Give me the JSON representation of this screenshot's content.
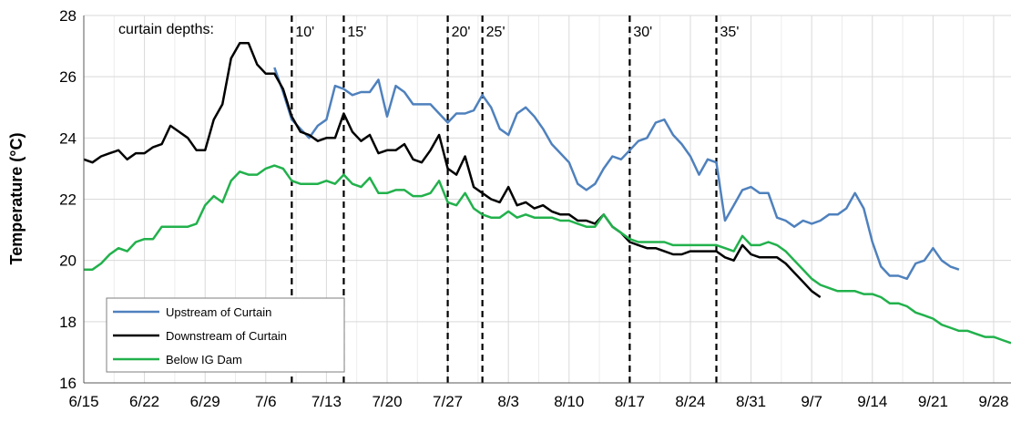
{
  "chart_data": {
    "type": "line",
    "title": "",
    "xlabel": "",
    "ylabel": "Temperature (°C)",
    "ylim": [
      16,
      28
    ],
    "yticks": [
      16,
      18,
      20,
      22,
      24,
      26,
      28
    ],
    "xlim": [
      "6/15",
      "9/30"
    ],
    "xticks": [
      "6/15",
      "6/22",
      "6/29",
      "7/6",
      "7/13",
      "7/20",
      "7/27",
      "8/3",
      "8/10",
      "8/17",
      "8/24",
      "8/31",
      "9/7",
      "9/14",
      "9/21",
      "9/28"
    ],
    "grid": true,
    "legend_position": "bottom-left",
    "annotation_label": "curtain depths:",
    "curtain_lines": [
      {
        "date": "7/9",
        "label": "10'"
      },
      {
        "date": "7/15",
        "label": "15'"
      },
      {
        "date": "7/27",
        "label": "20'"
      },
      {
        "date": "7/31",
        "label": "25'"
      },
      {
        "date": "8/17",
        "label": "30'"
      },
      {
        "date": "8/27",
        "label": "35'"
      }
    ],
    "series": [
      {
        "name": "Upstream of Curtain",
        "color": "#4f81bd",
        "points": [
          [
            "7/7",
            26.3
          ],
          [
            "7/8",
            25.5
          ],
          [
            "7/9",
            24.6
          ],
          [
            "7/10",
            24.3
          ],
          [
            "7/11",
            24.0
          ],
          [
            "7/12",
            24.4
          ],
          [
            "7/13",
            24.6
          ],
          [
            "7/14",
            25.7
          ],
          [
            "7/15",
            25.6
          ],
          [
            "7/16",
            25.4
          ],
          [
            "7/17",
            25.5
          ],
          [
            "7/18",
            25.5
          ],
          [
            "7/19",
            25.9
          ],
          [
            "7/20",
            24.7
          ],
          [
            "7/21",
            25.7
          ],
          [
            "7/22",
            25.5
          ],
          [
            "7/23",
            25.1
          ],
          [
            "7/24",
            25.1
          ],
          [
            "7/25",
            25.1
          ],
          [
            "7/26",
            24.8
          ],
          [
            "7/27",
            24.5
          ],
          [
            "7/28",
            24.8
          ],
          [
            "7/29",
            24.8
          ],
          [
            "7/30",
            24.9
          ],
          [
            "7/31",
            25.4
          ],
          [
            "8/1",
            25.0
          ],
          [
            "8/2",
            24.3
          ],
          [
            "8/3",
            24.1
          ],
          [
            "8/4",
            24.8
          ],
          [
            "8/5",
            25.0
          ],
          [
            "8/6",
            24.7
          ],
          [
            "8/7",
            24.3
          ],
          [
            "8/8",
            23.8
          ],
          [
            "8/9",
            23.5
          ],
          [
            "8/10",
            23.2
          ],
          [
            "8/11",
            22.5
          ],
          [
            "8/12",
            22.3
          ],
          [
            "8/13",
            22.5
          ],
          [
            "8/14",
            23.0
          ],
          [
            "8/15",
            23.4
          ],
          [
            "8/16",
            23.3
          ],
          [
            "8/17",
            23.6
          ],
          [
            "8/18",
            23.9
          ],
          [
            "8/19",
            24.0
          ],
          [
            "8/20",
            24.5
          ],
          [
            "8/21",
            24.6
          ],
          [
            "8/22",
            24.1
          ],
          [
            "8/23",
            23.8
          ],
          [
            "8/24",
            23.4
          ],
          [
            "8/25",
            22.8
          ],
          [
            "8/26",
            23.3
          ],
          [
            "8/27",
            23.2
          ],
          [
            "8/28",
            21.3
          ],
          [
            "8/29",
            21.8
          ],
          [
            "8/30",
            22.3
          ],
          [
            "8/31",
            22.4
          ],
          [
            "9/1",
            22.2
          ],
          [
            "9/2",
            22.2
          ],
          [
            "9/3",
            21.4
          ],
          [
            "9/4",
            21.3
          ],
          [
            "9/5",
            21.1
          ],
          [
            "9/6",
            21.3
          ],
          [
            "9/7",
            21.2
          ],
          [
            "9/8",
            21.3
          ],
          [
            "9/9",
            21.5
          ],
          [
            "9/10",
            21.5
          ],
          [
            "9/11",
            21.7
          ],
          [
            "9/12",
            22.2
          ],
          [
            "9/13",
            21.7
          ],
          [
            "9/14",
            20.6
          ],
          [
            "9/15",
            19.8
          ],
          [
            "9/16",
            19.5
          ],
          [
            "9/17",
            19.5
          ],
          [
            "9/18",
            19.4
          ],
          [
            "9/19",
            19.9
          ],
          [
            "9/20",
            20.0
          ],
          [
            "9/21",
            20.4
          ],
          [
            "9/22",
            20.0
          ],
          [
            "9/23",
            19.8
          ],
          [
            "9/24",
            19.7
          ]
        ]
      },
      {
        "name": "Downstream of Curtain",
        "color": "#000000",
        "points": [
          [
            "6/15",
            23.3
          ],
          [
            "6/16",
            23.2
          ],
          [
            "6/17",
            23.4
          ],
          [
            "6/18",
            23.5
          ],
          [
            "6/19",
            23.6
          ],
          [
            "6/20",
            23.3
          ],
          [
            "6/21",
            23.5
          ],
          [
            "6/22",
            23.5
          ],
          [
            "6/23",
            23.7
          ],
          [
            "6/24",
            23.8
          ],
          [
            "6/25",
            24.4
          ],
          [
            "6/26",
            24.2
          ],
          [
            "6/27",
            24.0
          ],
          [
            "6/28",
            23.6
          ],
          [
            "6/29",
            23.6
          ],
          [
            "6/30",
            24.6
          ],
          [
            "7/1",
            25.1
          ],
          [
            "7/2",
            26.6
          ],
          [
            "7/3",
            27.1
          ],
          [
            "7/4",
            27.1
          ],
          [
            "7/5",
            26.4
          ],
          [
            "7/6",
            26.1
          ],
          [
            "7/7",
            26.1
          ],
          [
            "7/8",
            25.6
          ],
          [
            "7/9",
            24.7
          ],
          [
            "7/10",
            24.2
          ],
          [
            "7/11",
            24.1
          ],
          [
            "7/12",
            23.9
          ],
          [
            "7/13",
            24.0
          ],
          [
            "7/14",
            24.0
          ],
          [
            "7/15",
            24.8
          ],
          [
            "7/16",
            24.2
          ],
          [
            "7/17",
            23.9
          ],
          [
            "7/18",
            24.1
          ],
          [
            "7/19",
            23.5
          ],
          [
            "7/20",
            23.6
          ],
          [
            "7/21",
            23.6
          ],
          [
            "7/22",
            23.8
          ],
          [
            "7/23",
            23.3
          ],
          [
            "7/24",
            23.2
          ],
          [
            "7/25",
            23.6
          ],
          [
            "7/26",
            24.1
          ],
          [
            "7/27",
            23.0
          ],
          [
            "7/28",
            22.8
          ],
          [
            "7/29",
            23.4
          ],
          [
            "7/30",
            22.4
          ],
          [
            "7/31",
            22.2
          ],
          [
            "8/1",
            22.0
          ],
          [
            "8/2",
            21.9
          ],
          [
            "8/3",
            22.4
          ],
          [
            "8/4",
            21.8
          ],
          [
            "8/5",
            21.9
          ],
          [
            "8/6",
            21.7
          ],
          [
            "8/7",
            21.8
          ],
          [
            "8/8",
            21.6
          ],
          [
            "8/9",
            21.5
          ],
          [
            "8/10",
            21.5
          ],
          [
            "8/11",
            21.3
          ],
          [
            "8/12",
            21.3
          ],
          [
            "8/13",
            21.2
          ],
          [
            "8/14",
            21.5
          ],
          [
            "8/15",
            21.1
          ],
          [
            "8/16",
            20.9
          ],
          [
            "8/17",
            20.6
          ],
          [
            "8/18",
            20.5
          ],
          [
            "8/19",
            20.4
          ],
          [
            "8/20",
            20.4
          ],
          [
            "8/21",
            20.3
          ],
          [
            "8/22",
            20.2
          ],
          [
            "8/23",
            20.2
          ],
          [
            "8/24",
            20.3
          ],
          [
            "8/25",
            20.3
          ],
          [
            "8/26",
            20.3
          ],
          [
            "8/27",
            20.3
          ],
          [
            "8/28",
            20.1
          ],
          [
            "8/29",
            20.0
          ],
          [
            "8/30",
            20.5
          ],
          [
            "8/31",
            20.2
          ],
          [
            "9/1",
            20.1
          ],
          [
            "9/2",
            20.1
          ],
          [
            "9/3",
            20.1
          ],
          [
            "9/4",
            19.9
          ],
          [
            "9/5",
            19.6
          ],
          [
            "9/6",
            19.3
          ],
          [
            "9/7",
            19.0
          ],
          [
            "9/8",
            18.8
          ]
        ]
      },
      {
        "name": "Below IG Dam",
        "color": "#22b14c",
        "points": [
          [
            "6/15",
            19.7
          ],
          [
            "6/16",
            19.7
          ],
          [
            "6/17",
            19.9
          ],
          [
            "6/18",
            20.2
          ],
          [
            "6/19",
            20.4
          ],
          [
            "6/20",
            20.3
          ],
          [
            "6/21",
            20.6
          ],
          [
            "6/22",
            20.7
          ],
          [
            "6/23",
            20.7
          ],
          [
            "6/24",
            21.1
          ],
          [
            "6/25",
            21.1
          ],
          [
            "6/26",
            21.1
          ],
          [
            "6/27",
            21.1
          ],
          [
            "6/28",
            21.2
          ],
          [
            "6/29",
            21.8
          ],
          [
            "6/30",
            22.1
          ],
          [
            "7/1",
            21.9
          ],
          [
            "7/2",
            22.6
          ],
          [
            "7/3",
            22.9
          ],
          [
            "7/4",
            22.8
          ],
          [
            "7/5",
            22.8
          ],
          [
            "7/6",
            23.0
          ],
          [
            "7/7",
            23.1
          ],
          [
            "7/8",
            23.0
          ],
          [
            "7/9",
            22.6
          ],
          [
            "7/10",
            22.5
          ],
          [
            "7/11",
            22.5
          ],
          [
            "7/12",
            22.5
          ],
          [
            "7/13",
            22.6
          ],
          [
            "7/14",
            22.5
          ],
          [
            "7/15",
            22.8
          ],
          [
            "7/16",
            22.5
          ],
          [
            "7/17",
            22.4
          ],
          [
            "7/18",
            22.7
          ],
          [
            "7/19",
            22.2
          ],
          [
            "7/20",
            22.2
          ],
          [
            "7/21",
            22.3
          ],
          [
            "7/22",
            22.3
          ],
          [
            "7/23",
            22.1
          ],
          [
            "7/24",
            22.1
          ],
          [
            "7/25",
            22.2
          ],
          [
            "7/26",
            22.6
          ],
          [
            "7/27",
            21.9
          ],
          [
            "7/28",
            21.8
          ],
          [
            "7/29",
            22.2
          ],
          [
            "7/30",
            21.7
          ],
          [
            "7/31",
            21.5
          ],
          [
            "8/1",
            21.4
          ],
          [
            "8/2",
            21.4
          ],
          [
            "8/3",
            21.6
          ],
          [
            "8/4",
            21.4
          ],
          [
            "8/5",
            21.5
          ],
          [
            "8/6",
            21.4
          ],
          [
            "8/7",
            21.4
          ],
          [
            "8/8",
            21.4
          ],
          [
            "8/9",
            21.3
          ],
          [
            "8/10",
            21.3
          ],
          [
            "8/11",
            21.2
          ],
          [
            "8/12",
            21.1
          ],
          [
            "8/13",
            21.1
          ],
          [
            "8/14",
            21.5
          ],
          [
            "8/15",
            21.1
          ],
          [
            "8/16",
            20.9
          ],
          [
            "8/17",
            20.7
          ],
          [
            "8/18",
            20.6
          ],
          [
            "8/19",
            20.6
          ],
          [
            "8/20",
            20.6
          ],
          [
            "8/21",
            20.6
          ],
          [
            "8/22",
            20.5
          ],
          [
            "8/23",
            20.5
          ],
          [
            "8/24",
            20.5
          ],
          [
            "8/25",
            20.5
          ],
          [
            "8/26",
            20.5
          ],
          [
            "8/27",
            20.5
          ],
          [
            "8/28",
            20.4
          ],
          [
            "8/29",
            20.3
          ],
          [
            "8/30",
            20.8
          ],
          [
            "8/31",
            20.5
          ],
          [
            "9/1",
            20.5
          ],
          [
            "9/2",
            20.6
          ],
          [
            "9/3",
            20.5
          ],
          [
            "9/4",
            20.3
          ],
          [
            "9/5",
            20.0
          ],
          [
            "9/6",
            19.7
          ],
          [
            "9/7",
            19.4
          ],
          [
            "9/8",
            19.2
          ],
          [
            "9/9",
            19.1
          ],
          [
            "9/10",
            19.0
          ],
          [
            "9/11",
            19.0
          ],
          [
            "9/12",
            19.0
          ],
          [
            "9/13",
            18.9
          ],
          [
            "9/14",
            18.9
          ],
          [
            "9/15",
            18.8
          ],
          [
            "9/16",
            18.6
          ],
          [
            "9/17",
            18.6
          ],
          [
            "9/18",
            18.5
          ],
          [
            "9/19",
            18.3
          ],
          [
            "9/20",
            18.2
          ],
          [
            "9/21",
            18.1
          ],
          [
            "9/22",
            17.9
          ],
          [
            "9/23",
            17.8
          ],
          [
            "9/24",
            17.7
          ],
          [
            "9/25",
            17.7
          ],
          [
            "9/26",
            17.6
          ],
          [
            "9/27",
            17.5
          ],
          [
            "9/28",
            17.5
          ],
          [
            "9/29",
            17.4
          ],
          [
            "9/30",
            17.3
          ]
        ]
      }
    ]
  }
}
